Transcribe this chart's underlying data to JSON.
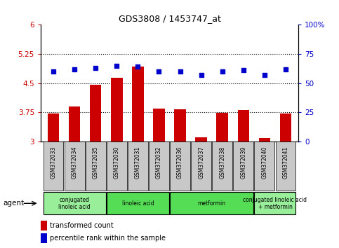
{
  "title": "GDS3808 / 1453747_at",
  "samples": [
    "GSM372033",
    "GSM372034",
    "GSM372035",
    "GSM372030",
    "GSM372031",
    "GSM372032",
    "GSM372036",
    "GSM372037",
    "GSM372038",
    "GSM372039",
    "GSM372040",
    "GSM372041"
  ],
  "bar_values": [
    3.72,
    3.9,
    4.45,
    4.63,
    4.92,
    3.84,
    3.82,
    3.1,
    3.74,
    3.8,
    3.08,
    3.72
  ],
  "dot_values": [
    60,
    62,
    63,
    65,
    64,
    60,
    60,
    57,
    60,
    61,
    57,
    62
  ],
  "ylim_left": [
    3.0,
    6.0
  ],
  "ylim_right": [
    0,
    100
  ],
  "yticks_left": [
    3.0,
    3.75,
    4.5,
    5.25,
    6.0
  ],
  "ytick_labels_left": [
    "3",
    "3.75",
    "4.5",
    "5.25",
    "6"
  ],
  "yticks_right": [
    0,
    25,
    50,
    75,
    100
  ],
  "ytick_labels_right": [
    "0",
    "25",
    "50",
    "75",
    "100%"
  ],
  "hlines": [
    3.75,
    4.5,
    5.25
  ],
  "bar_color": "#CC0000",
  "dot_color": "#0000CC",
  "agent_groups": [
    {
      "label": "conjugated\nlinoleic acid",
      "start": 0,
      "end": 2,
      "color": "#99EE99"
    },
    {
      "label": "linoleic acid",
      "start": 3,
      "end": 5,
      "color": "#55DD55"
    },
    {
      "label": "metformin",
      "start": 6,
      "end": 9,
      "color": "#55DD55"
    },
    {
      "label": "conjugated linoleic acid\n+ metformin",
      "start": 10,
      "end": 11,
      "color": "#99EE99"
    }
  ],
  "legend_bar_label": "transformed count",
  "legend_dot_label": "percentile rank within the sample",
  "agent_label": "agent",
  "tick_label_color_left": "#CC0000",
  "tick_label_color_right": "#0000CC",
  "sample_bg_color": "#C8C8C8",
  "plot_bg_color": "#FFFFFF"
}
